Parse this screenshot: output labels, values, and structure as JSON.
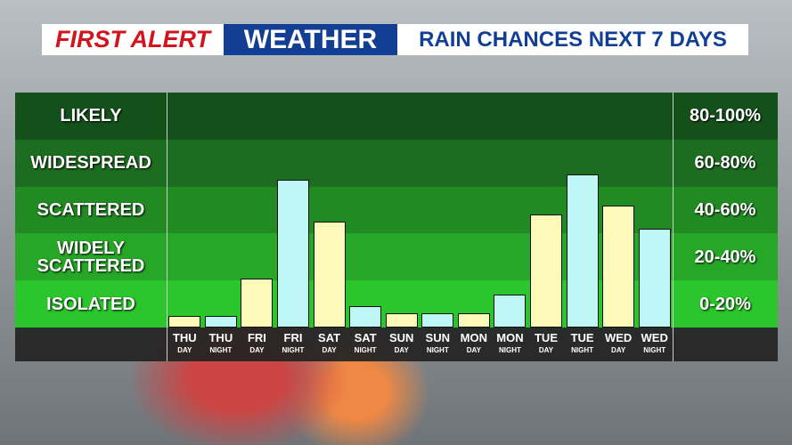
{
  "chart_data": {
    "type": "bar",
    "title": {
      "brand": "FIRST ALERT",
      "section": "WEATHER",
      "text": "RAIN CHANCES NEXT 7 DAYS"
    },
    "categories": [
      "THU",
      "THU",
      "FRI",
      "FRI",
      "SAT",
      "SAT",
      "SUN",
      "SUN",
      "MON",
      "MON",
      "TUE",
      "TUE",
      "WED",
      "WED"
    ],
    "periods": [
      "DAY",
      "NIGHT",
      "DAY",
      "NIGHT",
      "DAY",
      "NIGHT",
      "DAY",
      "NIGHT",
      "DAY",
      "NIGHT",
      "DAY",
      "NIGHT",
      "DAY",
      "NIGHT"
    ],
    "values": [
      5,
      5,
      21,
      63,
      45,
      9,
      6,
      6,
      6,
      14,
      48,
      65,
      52,
      42
    ],
    "colors": [
      "#fdf9b9",
      "#bff7f7",
      "#fdf9b9",
      "#bff7f7",
      "#fdf9b9",
      "#bff7f7",
      "#fdf9b9",
      "#bff7f7",
      "#fdf9b9",
      "#bff7f7",
      "#fdf9b9",
      "#bff7f7",
      "#fdf9b9",
      "#bff7f7"
    ],
    "ylim": [
      0,
      100
    ],
    "bands": [
      {
        "label": "LIKELY",
        "range_label": "80-100%",
        "range": [
          80,
          100
        ],
        "color": "#14501a"
      },
      {
        "label": "WIDESPREAD",
        "range_label": "60-80%",
        "range": [
          60,
          80
        ],
        "color": "#1c6d1f"
      },
      {
        "label": "SCATTERED",
        "range_label": "40-60%",
        "range": [
          40,
          60
        ],
        "color": "#228a23"
      },
      {
        "label": "WIDELY SCATTERED",
        "range_label": "20-40%",
        "range": [
          20,
          40
        ],
        "color": "#27a727"
      },
      {
        "label": "ISOLATED",
        "range_label": "0-20%",
        "range": [
          0,
          20
        ],
        "color": "#2bc62b"
      }
    ]
  }
}
